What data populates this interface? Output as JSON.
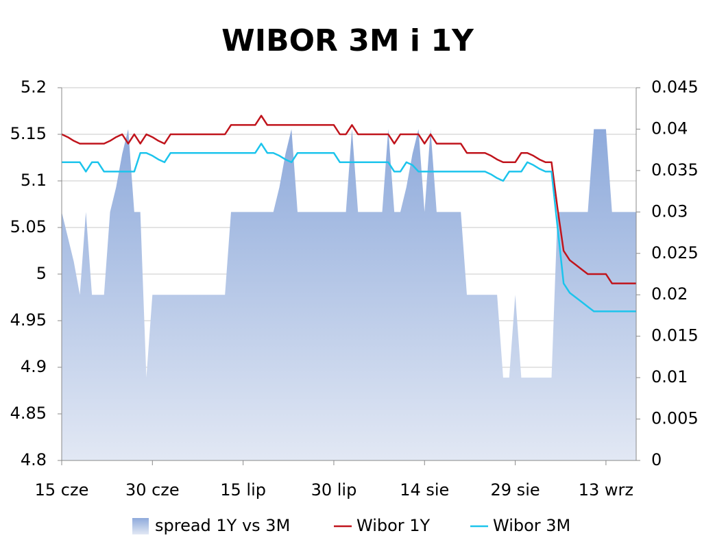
{
  "chart_data": {
    "type": "line",
    "title": "WIBOR 3M i 1Y",
    "categories": [
      "15 cze",
      null,
      null,
      null,
      null,
      null,
      null,
      null,
      null,
      null,
      null,
      null,
      null,
      null,
      null,
      "30 cze",
      null,
      null,
      null,
      null,
      null,
      null,
      null,
      null,
      null,
      null,
      null,
      null,
      null,
      null,
      "15 lip",
      null,
      null,
      null,
      null,
      null,
      null,
      null,
      null,
      null,
      null,
      null,
      null,
      null,
      null,
      "30 lip",
      null,
      null,
      null,
      null,
      null,
      null,
      null,
      null,
      null,
      null,
      null,
      null,
      null,
      null,
      "14 sie",
      null,
      null,
      null,
      null,
      null,
      null,
      null,
      null,
      null,
      null,
      null,
      null,
      null,
      null,
      "29 sie",
      null,
      null,
      null,
      null,
      null,
      null,
      null,
      null,
      null,
      null,
      null,
      null,
      null,
      null,
      "13 wrz",
      null,
      null,
      null,
      null,
      null
    ],
    "ylim": [
      4.8,
      5.2
    ],
    "yticks": [
      4.8,
      4.85,
      4.9,
      4.95,
      5,
      5.05,
      5.1,
      5.15,
      5.2
    ],
    "y2lim": [
      0,
      0.045
    ],
    "y2ticks": [
      0,
      0.005,
      0.01,
      0.015,
      0.02,
      0.025,
      0.03,
      0.035,
      0.04,
      0.045
    ],
    "grid": true,
    "legend": "bottom",
    "series": [
      {
        "name": "spread 1Y vs 3M",
        "type": "area",
        "axis": "y2",
        "color": "#8eaadb",
        "values": [
          0.03,
          0.027,
          0.024,
          0.02,
          0.03,
          0.02,
          0.02,
          0.02,
          0.03,
          0.033,
          0.037,
          0.04,
          0.03,
          0.03,
          0.01,
          0.02,
          0.02,
          0.02,
          0.02,
          0.02,
          0.02,
          0.02,
          0.02,
          0.02,
          0.02,
          0.02,
          0.02,
          0.02,
          0.03,
          0.03,
          0.03,
          0.03,
          0.03,
          0.03,
          0.03,
          0.03,
          0.033,
          0.037,
          0.04,
          0.03,
          0.03,
          0.03,
          0.03,
          0.03,
          0.03,
          0.03,
          0.03,
          0.03,
          0.04,
          0.03,
          0.03,
          0.03,
          0.03,
          0.03,
          0.04,
          0.03,
          0.03,
          0.033,
          0.037,
          0.04,
          0.03,
          0.04,
          0.03,
          0.03,
          0.03,
          0.03,
          0.03,
          0.02,
          0.02,
          0.02,
          0.02,
          0.02,
          0.02,
          0.01,
          0.01,
          0.02,
          0.01,
          0.01,
          0.01,
          0.01,
          0.01,
          0.01,
          0.03,
          0.03,
          0.03,
          0.03,
          0.03,
          0.03,
          0.04,
          0.04,
          0.04,
          0.03,
          0.03,
          0.03,
          0.03,
          0.03
        ]
      },
      {
        "name": "Wibor 1Y",
        "type": "line",
        "color": "#c0141c",
        "values": [
          5.15,
          5.147,
          5.143,
          5.14,
          5.14,
          5.14,
          5.14,
          5.14,
          5.143,
          5.147,
          5.15,
          5.14,
          5.15,
          5.14,
          5.15,
          5.147,
          5.143,
          5.14,
          5.15,
          5.15,
          5.15,
          5.15,
          5.15,
          5.15,
          5.15,
          5.15,
          5.15,
          5.15,
          5.16,
          5.16,
          5.16,
          5.16,
          5.16,
          5.17,
          5.16,
          5.16,
          5.16,
          5.16,
          5.16,
          5.16,
          5.16,
          5.16,
          5.16,
          5.16,
          5.16,
          5.16,
          5.15,
          5.15,
          5.16,
          5.15,
          5.15,
          5.15,
          5.15,
          5.15,
          5.15,
          5.14,
          5.15,
          5.15,
          5.15,
          5.15,
          5.14,
          5.15,
          5.14,
          5.14,
          5.14,
          5.14,
          5.14,
          5.13,
          5.13,
          5.13,
          5.13,
          5.127,
          5.123,
          5.12,
          5.12,
          5.12,
          5.13,
          5.13,
          5.127,
          5.123,
          5.12,
          5.12,
          5.07,
          5.025,
          5.015,
          5.01,
          5.005,
          5,
          5,
          5,
          5,
          4.99,
          4.99,
          4.99,
          4.99,
          4.99
        ]
      },
      {
        "name": "Wibor 3M",
        "type": "line",
        "color": "#1cc4ec",
        "values": [
          5.12,
          5.12,
          5.12,
          5.12,
          5.11,
          5.12,
          5.12,
          5.11,
          5.11,
          5.11,
          5.11,
          5.11,
          5.11,
          5.13,
          5.13,
          5.127,
          5.123,
          5.12,
          5.13,
          5.13,
          5.13,
          5.13,
          5.13,
          5.13,
          5.13,
          5.13,
          5.13,
          5.13,
          5.13,
          5.13,
          5.13,
          5.13,
          5.13,
          5.14,
          5.13,
          5.13,
          5.127,
          5.123,
          5.12,
          5.13,
          5.13,
          5.13,
          5.13,
          5.13,
          5.13,
          5.13,
          5.12,
          5.12,
          5.12,
          5.12,
          5.12,
          5.12,
          5.12,
          5.12,
          5.12,
          5.11,
          5.11,
          5.12,
          5.117,
          5.11,
          5.11,
          5.11,
          5.11,
          5.11,
          5.11,
          5.11,
          5.11,
          5.11,
          5.11,
          5.11,
          5.11,
          5.107,
          5.103,
          5.1,
          5.11,
          5.11,
          5.11,
          5.12,
          5.117,
          5.113,
          5.11,
          5.11,
          5.05,
          4.99,
          4.98,
          4.975,
          4.97,
          4.965,
          4.96,
          4.96,
          4.96,
          4.96,
          4.96,
          4.96,
          4.96,
          4.96
        ]
      }
    ]
  }
}
